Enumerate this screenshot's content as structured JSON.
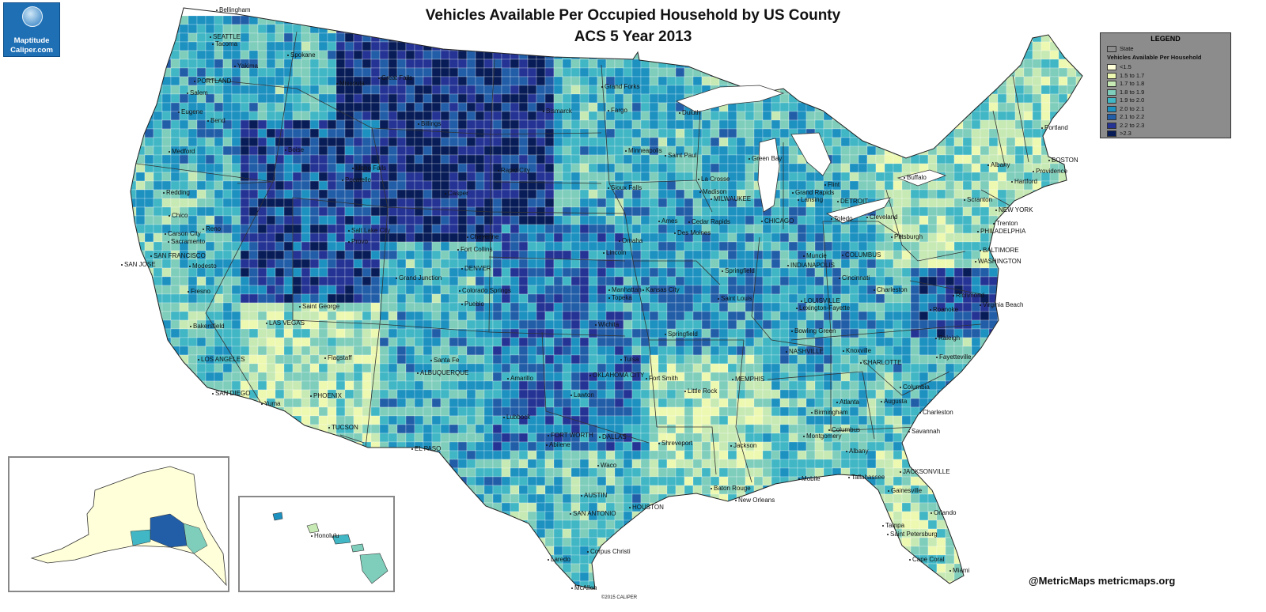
{
  "title": {
    "line1": "Vehicles Available Per Occupied Household by US County",
    "line2": "ACS 5 Year 2013"
  },
  "logo": {
    "line1": "Maptitude",
    "line2": "Caliper.com"
  },
  "legend": {
    "title": "LEGEND",
    "state_label": "State",
    "subtitle": "Vehicles Available Per Household",
    "classes": [
      {
        "label": "<1.5",
        "color": "#ffffd9"
      },
      {
        "label": "1.5 to 1.7",
        "color": "#edf8b1"
      },
      {
        "label": "1.7 to 1.8",
        "color": "#c7e9b4"
      },
      {
        "label": "1.8 to 1.9",
        "color": "#7fcdbb"
      },
      {
        "label": "1.9 to 2.0",
        "color": "#41b6c4"
      },
      {
        "label": "2.0 to 2.1",
        "color": "#1d91c0"
      },
      {
        "label": "2.1 to 2.2",
        "color": "#225ea8"
      },
      {
        "label": "2.2 to 2.3",
        "color": "#253494"
      },
      {
        "label": ">2.3",
        "color": "#081d58"
      }
    ]
  },
  "credit": "@MetricMaps metricmaps.org",
  "copyright": "©2015 CALIPER",
  "cities": [
    "Bellingham",
    "SEATTLE",
    "Tacoma",
    "Yakima",
    "Spokane",
    "PORTLAND",
    "Salem",
    "Eugene",
    "Bend",
    "Medford",
    "Missoula",
    "Great Falls",
    "Billings",
    "Boise",
    "Idaho Falls",
    "Pocatello",
    "Grand Forks",
    "Fargo",
    "Bismarck",
    "Duluth",
    "Minneapolis",
    "Saint Paul",
    "Rapid City",
    "Casper",
    "Sioux Falls",
    "La Crosse",
    "Green Bay",
    "Madison",
    "MILWAUKEE",
    "CHICAGO",
    "Flint",
    "Grand Rapids",
    "Lansing",
    "DETROIT",
    "Toledo",
    "Cleveland",
    "Buffalo",
    "Albany",
    "Portland",
    "BOSTON",
    "Providence",
    "Hartford",
    "Scranton",
    "NEW YORK",
    "Trenton",
    "PHILADELPHIA",
    "BALTIMORE",
    "WASHINGTON",
    "Pittsburgh",
    "Redding",
    "Chico",
    "Carson City",
    "Reno",
    "Sacramento",
    "SAN FRANCISCO",
    "SAN JOSE",
    "Modesto",
    "Fresno",
    "Salt Lake City",
    "Provo",
    "Cheyenne",
    "Fort Collins",
    "DENVER",
    "Grand Junction",
    "Colorado Springs",
    "Pueblo",
    "Saint George",
    "LAS VEGAS",
    "Bakersfield",
    "LOS ANGELES",
    "SAN DIEGO",
    "Yuma",
    "Flagstaff",
    "PHOENIX",
    "TUCSON",
    "Santa Fe",
    "ALBUQUERQUE",
    "EL PASO",
    "Amarillo",
    "Lubbock",
    "Omaha",
    "Lincoln",
    "Ames",
    "Des Moines",
    "Cedar Rapids",
    "Manhattan",
    "Topeka",
    "Kansas City",
    "Wichita",
    "Springfield",
    "Saint Louis",
    "Springfield",
    "Muncie",
    "INDIANAPOLIS",
    "COLUMBUS",
    "Cincinnati",
    "LOUISVILLE",
    "Lexington-Fayette",
    "Charleston",
    "Richmond",
    "Roanoke",
    "Virginia Beach",
    "Bowling Green",
    "NASHVILLE",
    "Knoxville",
    "Raleigh",
    "Fayetteville",
    "CHARLOTTE",
    "Tulsa",
    "OKLAHOMA CITY",
    "Lawton",
    "Fort Smith",
    "Little Rock",
    "MEMPHIS",
    "Atlanta",
    "Birmingham",
    "Columbus",
    "Augusta",
    "Columbia",
    "Charleston",
    "Savannah",
    "Montgomery",
    "Albany",
    "FORT WORTH",
    "DALLAS",
    "Abilene",
    "Shreveport",
    "Jackson",
    "Waco",
    "AUSTIN",
    "HOUSTON",
    "SAN ANTONIO",
    "Baton Rouge",
    "New Orleans",
    "Mobile",
    "Tallahassee",
    "JACKSONVILLE",
    "Gainesville",
    "Orlando",
    "Tampa",
    "Saint Petersburg",
    "Cape Coral",
    "Miami",
    "Laredo",
    "Corpus Christi",
    "McAllen",
    "Honolulu"
  ]
}
